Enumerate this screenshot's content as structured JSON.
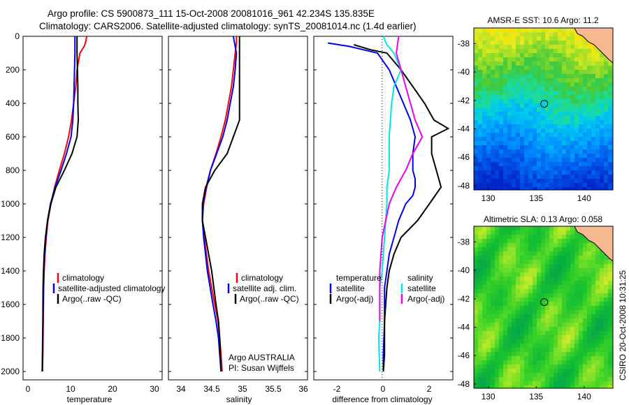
{
  "header": {
    "line1": "Argo profile: CS 5900873_111 15-Oct-2008 20081016_961 42.234S 135.835E",
    "line2": "Climatology: CARS2006. Satellite-adjusted climatology: synTS_20081014.nc (1.4d earlier)"
  },
  "credit": "CSIRO 20-Oct-2008 10:31:25",
  "colors": {
    "clim": "#ff0000",
    "sat": "#0000ee",
    "argo": "#000000",
    "sal_sat": "#00e5e5",
    "sal_argo": "#ee00ee",
    "coast": "#f7b98f"
  },
  "chart_data": [
    {
      "type": "line",
      "id": "temperature",
      "xlabel": "temperature",
      "xlim": [
        -2,
        31
      ],
      "ylim": [
        0,
        2050
      ],
      "xticks": [
        "0",
        "10",
        "20",
        "30"
      ],
      "yticks": [
        "0",
        "200",
        "400",
        "600",
        "800",
        "1000",
        "1200",
        "1400",
        "1600",
        "1800",
        "2000"
      ],
      "legend": [
        "climatology",
        "satellite-adjusted climatology",
        "Argo(..raw -QC)"
      ],
      "series": [
        {
          "name": "climatology",
          "color": "clim",
          "x": [
            13.1,
            12.9,
            12.5,
            11.5,
            10.8,
            10.5,
            10.0,
            9.5,
            8.8,
            7.8,
            6.6,
            5.5,
            4.6,
            3.9,
            3.5,
            3.2,
            3.0,
            2.9,
            2.8,
            2.7,
            2.6
          ],
          "y": [
            0,
            30,
            60,
            100,
            200,
            300,
            400,
            500,
            600,
            700,
            800,
            900,
            1000,
            1100,
            1200,
            1300,
            1400,
            1500,
            1700,
            1900,
            2000
          ]
        },
        {
          "name": "satellite-adjusted climatology",
          "color": "sat",
          "x": [
            10.3,
            10.3,
            10.3,
            10.3,
            10.2,
            10.1,
            10.0,
            9.8,
            9.4,
            8.3,
            7.0,
            5.6,
            4.5,
            3.8,
            3.4,
            3.1,
            2.95,
            2.85,
            2.75,
            2.65,
            2.6
          ],
          "y": [
            0,
            30,
            60,
            100,
            200,
            300,
            400,
            500,
            600,
            700,
            800,
            900,
            1000,
            1100,
            1200,
            1300,
            1400,
            1500,
            1700,
            1900,
            2000
          ]
        },
        {
          "name": "Argo(..raw -QC)",
          "color": "argo",
          "x": [
            10.8,
            10.8,
            10.8,
            10.8,
            10.9,
            11.0,
            11.0,
            11.1,
            10.8,
            9.6,
            7.8,
            5.8,
            4.6,
            3.8,
            3.3,
            3.0,
            2.85,
            2.75,
            2.7,
            2.6,
            2.55
          ],
          "y": [
            0,
            30,
            60,
            100,
            200,
            300,
            400,
            500,
            600,
            700,
            800,
            900,
            1000,
            1100,
            1200,
            1300,
            1400,
            1500,
            1700,
            1900,
            2000
          ]
        }
      ]
    },
    {
      "type": "line",
      "id": "salinity",
      "xlabel": "salinity",
      "xlim": [
        33.85,
        36.1
      ],
      "ylim": [
        0,
        2050
      ],
      "xticks": [
        "34",
        "34.5",
        "35",
        "35.5",
        "36"
      ],
      "legend": [
        "climatology",
        "satellite adj. clim.",
        "Argo(..raw -QC)"
      ],
      "annotation": [
        "Argo AUSTRALIA",
        "PI: Susan Wijffels"
      ],
      "series": [
        {
          "name": "climatology",
          "color": "clim",
          "x": [
            34.95,
            34.95,
            34.93,
            34.9,
            34.87,
            34.82,
            34.77,
            34.7,
            34.62,
            34.53,
            34.47,
            34.42,
            34.4,
            34.43,
            34.5,
            34.6,
            34.65,
            34.68,
            34.7,
            34.72
          ],
          "y": [
            0,
            40,
            100,
            200,
            300,
            400,
            500,
            600,
            700,
            800,
            900,
            1000,
            1100,
            1200,
            1400,
            1600,
            1700,
            1800,
            1900,
            2000
          ]
        },
        {
          "name": "satellite adj. clim.",
          "color": "sat",
          "x": [
            34.9,
            34.92,
            34.95,
            34.93,
            34.9,
            34.85,
            34.8,
            34.73,
            34.63,
            34.53,
            34.46,
            34.41,
            34.4,
            34.42,
            34.48,
            34.57,
            34.62,
            34.66,
            34.68,
            34.7
          ],
          "y": [
            0,
            40,
            100,
            200,
            300,
            400,
            500,
            600,
            700,
            800,
            900,
            1000,
            1100,
            1200,
            1400,
            1600,
            1700,
            1800,
            1900,
            2000
          ]
        },
        {
          "name": "Argo(..raw -QC)",
          "color": "argo",
          "x": [
            35.0,
            35.0,
            35.0,
            35.0,
            35.0,
            35.0,
            35.0,
            34.95,
            34.8,
            34.6,
            34.45,
            34.4,
            34.4,
            34.45,
            34.55,
            34.62,
            34.66,
            34.68,
            34.7
          ],
          "y": [
            0,
            40,
            100,
            200,
            300,
            400,
            500,
            550,
            700,
            800,
            900,
            1000,
            1100,
            1200,
            1400,
            1600,
            1700,
            1800,
            2000
          ]
        }
      ]
    },
    {
      "type": "line",
      "id": "difference",
      "xlabel": "difference from climatology",
      "xlim": [
        -2.9,
        3.0
      ],
      "ylim": [
        0,
        2050
      ],
      "xticks": [
        "-2",
        "0",
        "2"
      ],
      "legend_titles": [
        "temperature",
        "salinity"
      ],
      "legend_left": [
        "satellite",
        "Argo(-adj)"
      ],
      "legend_right": [
        "satellite",
        "Argo(-adj)"
      ],
      "series": [
        {
          "name": "temperature satellite",
          "color": "sat",
          "x": [
            -2.3,
            -1.4,
            -0.2,
            0.3,
            0.6,
            0.9,
            1.2,
            1.4,
            1.3,
            1.3,
            1.4,
            1.4,
            1.3,
            1.0,
            0.7,
            0.5,
            0.3,
            0.2,
            0.1,
            0.1,
            0.05,
            0.05
          ],
          "y": [
            40,
            60,
            100,
            200,
            300,
            400,
            500,
            600,
            700,
            800,
            850,
            900,
            950,
            1000,
            1100,
            1200,
            1300,
            1400,
            1500,
            1700,
            1900,
            2000
          ]
        },
        {
          "name": "temperature Argo(-adj)",
          "color": "argo",
          "x": [
            -1.2,
            -0.5,
            0.2,
            0.8,
            1.3,
            1.8,
            2.2,
            2.8,
            2.1,
            2.1,
            2.3,
            2.5,
            2.0,
            1.5,
            0.8,
            0.5,
            0.3,
            0.2,
            0.1,
            0.1,
            0.05
          ],
          "y": [
            50,
            80,
            100,
            200,
            300,
            400,
            500,
            550,
            600,
            700,
            800,
            900,
            1000,
            1100,
            1200,
            1300,
            1400,
            1500,
            1700,
            1900,
            2000
          ]
        },
        {
          "name": "salinity satellite",
          "color": "sal_sat",
          "x": [
            0.05,
            0.2,
            0.5,
            0.8,
            0.5,
            0.4,
            0.3,
            0.3,
            0.2,
            0.2,
            0.1,
            0.0,
            -0.1,
            -0.1,
            -0.1,
            -0.15,
            -0.1
          ],
          "y": [
            0,
            50,
            100,
            200,
            300,
            400,
            600,
            800,
            900,
            1000,
            1200,
            1400,
            1500,
            1600,
            1700,
            1800,
            2000
          ]
        },
        {
          "name": "salinity Argo(-adj)",
          "color": "sal_argo",
          "x": [
            0.7,
            0.6,
            0.8,
            1.0,
            1.2,
            1.4,
            1.7,
            1.3,
            1.0,
            0.6,
            0.3,
            0.0,
            -0.1,
            -0.1,
            -0.1
          ],
          "y": [
            0,
            100,
            200,
            300,
            400,
            500,
            600,
            700,
            800,
            900,
            1000,
            1200,
            1400,
            1600,
            1700
          ]
        }
      ]
    },
    {
      "type": "heatmap",
      "id": "sst_map",
      "title": "AMSR-E SST: 10.6 Argo: 11.2",
      "xlim": [
        128.5,
        143
      ],
      "ylim": [
        -48.3,
        -36.9
      ],
      "xticks": [
        "130",
        "135",
        "140"
      ],
      "yticks": [
        "-38",
        "-40",
        "-42",
        "-44",
        "-46",
        "-48"
      ],
      "float_position": {
        "lon": 135.835,
        "lat": -42.234
      }
    },
    {
      "type": "heatmap",
      "id": "sla_map",
      "title": "Altimetric SLA: 0.13 Argo: 0.058",
      "xlim": [
        128.5,
        143
      ],
      "ylim": [
        -48.3,
        -36.9
      ],
      "xticks": [
        "130",
        "135",
        "140"
      ],
      "yticks": [
        "-38",
        "-40",
        "-42",
        "-44",
        "-46",
        "-48"
      ],
      "float_position": {
        "lon": 135.835,
        "lat": -42.234
      }
    }
  ]
}
